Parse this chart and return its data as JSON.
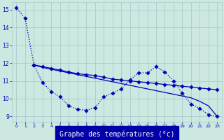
{
  "xlabel": "Graphe des températures (°c)",
  "background_color": "#cce8e0",
  "grid_color": "#aacccc",
  "line_color": "#0000bb",
  "xlim": [
    -0.5,
    23.5
  ],
  "ylim": [
    8.7,
    15.4
  ],
  "xticks": [
    0,
    1,
    2,
    3,
    4,
    5,
    6,
    7,
    8,
    9,
    10,
    11,
    12,
    13,
    14,
    15,
    16,
    17,
    18,
    19,
    20,
    21,
    22,
    23
  ],
  "yticks": [
    9,
    10,
    11,
    12,
    13,
    14,
    15
  ],
  "series1_x": [
    0,
    1,
    2,
    3,
    4,
    5,
    6,
    7,
    8,
    9,
    10,
    11,
    12,
    13,
    14,
    15,
    16,
    17,
    18,
    19,
    20,
    21,
    22,
    23
  ],
  "series1_y": [
    15.1,
    14.5,
    11.9,
    10.9,
    10.4,
    10.1,
    9.6,
    9.4,
    9.35,
    9.5,
    10.1,
    10.3,
    10.55,
    11.05,
    11.45,
    11.45,
    11.8,
    11.5,
    11.0,
    10.3,
    9.7,
    9.45,
    9.1,
    9.0
  ],
  "series2_x": [
    2,
    3,
    4,
    5,
    6,
    7,
    8,
    9,
    10,
    11,
    12,
    13,
    14,
    15,
    16,
    17,
    18,
    19,
    20,
    21,
    22,
    23
  ],
  "series2_y": [
    11.9,
    11.75,
    11.65,
    11.55,
    11.45,
    11.35,
    11.25,
    11.15,
    11.05,
    10.95,
    10.85,
    10.75,
    10.65,
    10.55,
    10.45,
    10.35,
    10.25,
    10.15,
    10.05,
    9.85,
    9.6,
    9.0
  ],
  "series3_x": [
    2,
    3,
    4,
    5,
    6,
    7,
    8,
    9,
    10,
    11,
    12,
    13,
    14,
    15,
    16,
    17,
    18,
    19,
    20,
    21,
    22,
    23
  ],
  "series3_y": [
    11.9,
    11.8,
    11.7,
    11.6,
    11.5,
    11.4,
    11.35,
    11.3,
    11.2,
    11.1,
    11.05,
    11.0,
    10.95,
    10.9,
    10.85,
    10.8,
    10.75,
    10.7,
    10.65,
    10.6,
    10.55,
    10.5
  ],
  "xlabel_bg": "#0000aa",
  "xlabel_fg": "#ffffff",
  "xlabel_fontsize": 7.0
}
